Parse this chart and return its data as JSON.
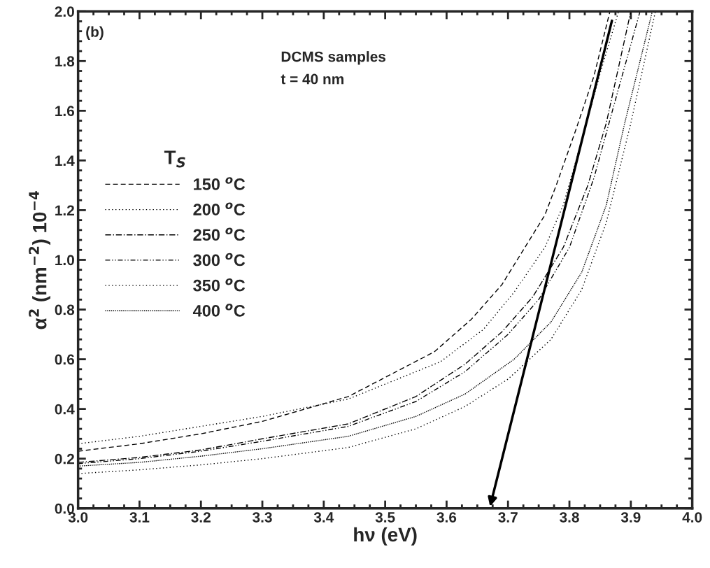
{
  "chart_data": {
    "type": "line",
    "xlabel": "hν (eV)",
    "ylabel": "α$^{2}$ (nm$^{−2}$) 10$^{−4}$",
    "legend_title": "T$_{S}$",
    "annotations": [
      "(b)",
      "DCMS samples",
      "t = 40 nm"
    ],
    "xlim": [
      3.0,
      4.0
    ],
    "xticks": [
      {
        "value": 3,
        "label": "3.0"
      },
      3.1,
      3.2,
      3.3,
      3.4,
      3.5,
      3.6,
      3.7,
      3.8,
      3.9,
      {
        "value": 4,
        "label": "4.0"
      }
    ],
    "ylim": [
      0.0,
      2.0
    ],
    "yticks": [
      {
        "value": 0,
        "label": "0.0"
      },
      0.2,
      0.4,
      0.6,
      0.8,
      {
        "value": 1,
        "label": "1.0"
      },
      1.2,
      1.4,
      1.6,
      1.8,
      {
        "value": 2,
        "label": "2.0"
      }
    ],
    "grid": false,
    "legend": "left",
    "marker": "none",
    "series": [
      {
        "name": "150 $^{o}$C",
        "color": "#000000",
        "line_style": "dashed",
        "x": [
          3.0,
          3.1,
          3.2,
          3.3,
          3.44,
          3.58,
          3.64,
          3.69,
          3.73,
          3.76,
          3.78,
          3.81,
          3.84,
          3.866
        ],
        "values": [
          0.23,
          0.26,
          0.3,
          0.35,
          0.45,
          0.63,
          0.76,
          0.9,
          1.06,
          1.18,
          1.31,
          1.52,
          1.74,
          2.0
        ]
      },
      {
        "name": "200 $^{o}$C",
        "color": "#000000",
        "line_style": "dotted",
        "x": [
          3.0,
          3.1,
          3.2,
          3.3,
          3.44,
          3.59,
          3.66,
          3.71,
          3.76,
          3.79,
          3.82,
          3.85,
          3.88
        ],
        "values": [
          0.26,
          0.29,
          0.33,
          0.37,
          0.44,
          0.59,
          0.72,
          0.87,
          1.05,
          1.22,
          1.48,
          1.75,
          2.0
        ]
      },
      {
        "name": "250 $^{o}$C",
        "color": "#000000",
        "line_style": "dashdot",
        "x": [
          3.0,
          3.1,
          3.2,
          3.3,
          3.44,
          3.55,
          3.63,
          3.69,
          3.74,
          3.79,
          3.83,
          3.86,
          3.9
        ],
        "values": [
          0.185,
          0.205,
          0.235,
          0.28,
          0.34,
          0.45,
          0.58,
          0.71,
          0.85,
          1.05,
          1.3,
          1.55,
          2.0
        ]
      },
      {
        "name": "300 $^{o}$C",
        "color": "#000000",
        "line_style": "dashdotdot",
        "x": [
          3.0,
          3.1,
          3.2,
          3.3,
          3.44,
          3.55,
          3.63,
          3.7,
          3.75,
          3.8,
          3.84,
          3.87,
          3.915
        ],
        "values": [
          0.18,
          0.2,
          0.23,
          0.27,
          0.33,
          0.43,
          0.55,
          0.7,
          0.84,
          1.05,
          1.33,
          1.6,
          2.0
        ]
      },
      {
        "name": "350 $^{o}$C",
        "color": "#000000",
        "line_style": "dotted",
        "x": [
          3.0,
          3.1,
          3.2,
          3.3,
          3.44,
          3.55,
          3.63,
          3.7,
          3.77,
          3.82,
          3.86,
          3.9,
          3.94
        ],
        "values": [
          0.14,
          0.155,
          0.175,
          0.2,
          0.245,
          0.32,
          0.41,
          0.52,
          0.68,
          0.88,
          1.15,
          1.55,
          2.0
        ]
      },
      {
        "name": "400 $^{o}$C",
        "color": "#000000",
        "line_style": "fine",
        "x": [
          3.0,
          3.1,
          3.2,
          3.3,
          3.44,
          3.55,
          3.63,
          3.71,
          3.77,
          3.82,
          3.86,
          3.89,
          3.935
        ],
        "values": [
          0.17,
          0.185,
          0.21,
          0.24,
          0.29,
          0.37,
          0.46,
          0.6,
          0.75,
          0.95,
          1.22,
          1.55,
          2.0
        ]
      }
    ]
  }
}
